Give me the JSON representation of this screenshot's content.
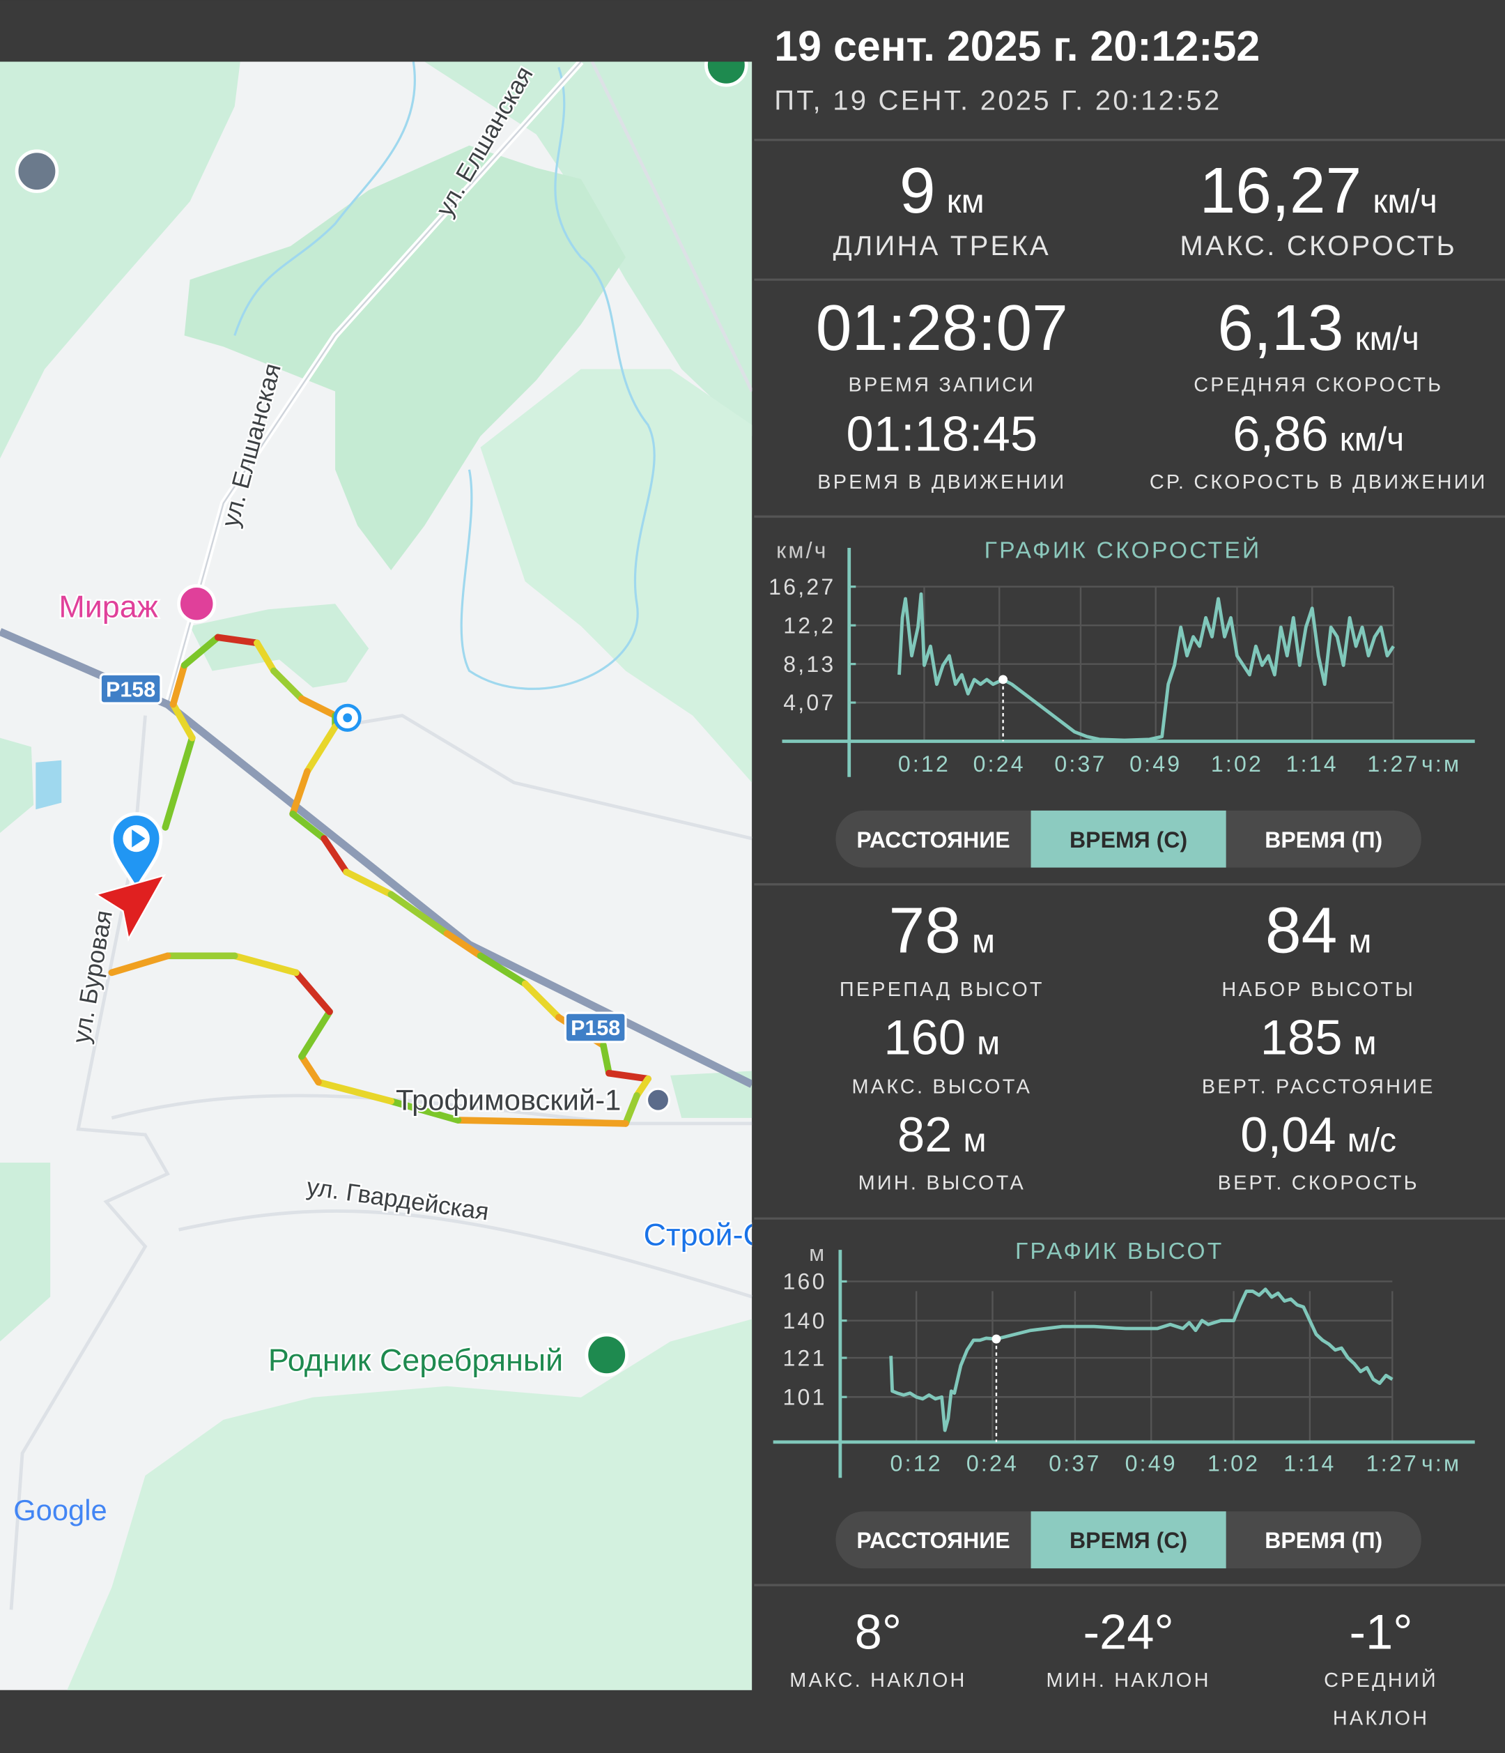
{
  "header": {
    "title": "19 сент. 2025 г. 20:12:52",
    "subtitle": "ПТ, 19 СЕНТ. 2025 Г. 20:12:52"
  },
  "map": {
    "labels": [
      "ул. Елшанская",
      "ул. Елшанская",
      "Мираж",
      "ул. Буровая",
      "Трофимовский-1",
      "ул. Гвардейская",
      "Строй-С",
      "Родник Серебряный"
    ],
    "road_numbers": [
      "Р158",
      "Р158"
    ],
    "logo": "Google"
  },
  "stats": [
    {
      "value": "9",
      "unit": "км",
      "label": "ДЛИНА ТРЕКА"
    },
    {
      "value": "16,27",
      "unit": "км/ч",
      "label": "МАКС. СКОРОСТЬ"
    },
    {
      "value": "01:28:07",
      "label": "ВРЕМЯ ЗАПИСИ"
    },
    {
      "value": "6,13",
      "unit": "км/ч",
      "label": "СРЕДНЯЯ СКОРОСТЬ"
    },
    {
      "value": "01:18:45",
      "label": "ВРЕМЯ В ДВИЖЕНИИ"
    },
    {
      "value": "6,86",
      "unit": "км/ч",
      "label": "СР. СКОРОСТЬ В ДВИЖЕНИИ"
    }
  ],
  "elevation_stats": [
    {
      "value": "78",
      "unit": "м",
      "label": "ПЕРЕПАД ВЫСОТ"
    },
    {
      "value": "84",
      "unit": "м",
      "label": "НАБОР ВЫСОТЫ"
    },
    {
      "value": "160",
      "unit": "м",
      "label": "МАКС. ВЫСОТА"
    },
    {
      "value": "185",
      "unit": "м",
      "label": "ВЕРТ. РАССТОЯНИЕ"
    },
    {
      "value": "82",
      "unit": "м",
      "label": "МИН. ВЫСОТА"
    },
    {
      "value": "0,04",
      "unit": "м/с",
      "label": "ВЕРТ. СКОРОСТЬ"
    }
  ],
  "tilt_stats": [
    {
      "value": "8°",
      "label": [
        "МАКС. НАКЛОН"
      ]
    },
    {
      "value": "-24°",
      "label": [
        "МИН. НАКЛОН"
      ]
    },
    {
      "value": "-1°",
      "label": [
        "СРЕДНИЙ",
        "НАКЛОН"
      ]
    }
  ],
  "toggles": [
    {
      "options": [
        "РАССТОЯНИЕ",
        "ВРЕМЯ (С)",
        "ВРЕМЯ (П)"
      ],
      "selected": 1
    },
    {
      "options": [
        "РАССТОЯНИЕ",
        "ВРЕМЯ (С)",
        "ВРЕМЯ (П)"
      ],
      "selected": 1
    }
  ],
  "chart_data": [
    {
      "type": "line",
      "title": "ГРАФИК СКОРОСТЕЙ",
      "y_label": "км/ч",
      "x_label": "ч:м",
      "x": [
        8,
        8.5,
        9,
        10,
        11,
        11.5,
        12,
        13,
        14,
        15,
        16,
        17,
        18,
        19,
        20,
        21,
        22,
        23,
        24.6,
        26,
        28,
        30,
        32,
        34,
        36,
        38,
        40,
        44,
        48,
        50,
        51,
        52,
        53,
        54,
        55,
        56,
        57,
        58,
        59,
        60,
        61,
        62,
        63,
        64,
        65,
        66,
        67,
        68,
        69,
        70,
        71,
        72,
        73,
        74,
        75,
        76,
        77,
        78,
        79,
        80,
        81,
        82,
        83,
        84,
        85,
        86,
        87
      ],
      "series": [
        {
          "name": "Скорость",
          "color": "#80c8bb",
          "values": [
            7,
            13,
            15,
            9,
            12,
            15.5,
            8,
            10,
            6,
            8,
            9,
            6,
            7,
            5,
            6.5,
            6,
            6.5,
            6,
            6.5,
            6,
            5,
            4,
            3,
            2,
            1,
            0.5,
            0.2,
            0.1,
            0.2,
            0.5,
            6,
            8,
            12,
            9,
            11,
            10,
            13,
            11,
            15,
            11,
            13,
            9,
            8,
            7,
            10,
            8,
            9,
            7,
            12,
            9,
            13,
            8,
            12,
            14,
            9,
            6,
            12,
            11,
            8,
            13,
            10,
            12,
            9,
            11,
            12,
            9,
            10
          ]
        }
      ],
      "xlim": [
        0,
        100
      ],
      "ylim": [
        0,
        20
      ],
      "xticks": [
        {
          "value": 12,
          "label": "0:12"
        },
        {
          "value": 24,
          "label": "0:24"
        },
        {
          "value": 37,
          "label": "0:37"
        },
        {
          "value": 49,
          "label": "0:49"
        },
        {
          "value": 62,
          "label": "1:02"
        },
        {
          "value": 74,
          "label": "1:14"
        },
        {
          "value": 87,
          "label": "1:27"
        }
      ],
      "yticks": [
        {
          "value": 4.07,
          "label": "4,07"
        },
        {
          "value": 8.13,
          "label": "8,13"
        },
        {
          "value": 12.2,
          "label": "12,2"
        },
        {
          "value": 16.27,
          "label": "16,27"
        }
      ],
      "grid": true,
      "highlight_x": 24.6
    },
    {
      "type": "line",
      "title": "ГРАФИК ВЫСОТ",
      "y_label": "м",
      "x_label": "ч:м",
      "x": [
        8,
        8.2,
        9,
        10,
        11,
        12,
        13,
        14,
        15,
        16,
        16.5,
        17,
        17.5,
        18,
        19,
        20,
        21,
        22,
        23,
        24.6,
        30,
        35,
        40,
        45,
        50,
        52,
        54,
        55,
        56,
        57,
        58,
        60,
        62,
        63,
        64,
        65,
        66,
        67,
        68,
        69,
        70,
        71,
        72,
        73,
        74,
        75,
        76,
        77,
        78,
        79,
        80,
        81,
        82,
        83,
        84,
        85,
        86,
        87
      ],
      "series": [
        {
          "name": "Высота",
          "color": "#80c8bb",
          "values": [
            122,
            104,
            103,
            102,
            103,
            101,
            100,
            102,
            100,
            101,
            84,
            90,
            104,
            103,
            117,
            125,
            130,
            130,
            131,
            130.6,
            135,
            137,
            137,
            136,
            136,
            138,
            136,
            139,
            135,
            140,
            138,
            140,
            140,
            148,
            155,
            155,
            153,
            156,
            152,
            154,
            150,
            151,
            148,
            147,
            140,
            133,
            130,
            128,
            125,
            126,
            121,
            118,
            114,
            116,
            110,
            108,
            112,
            110
          ]
        }
      ],
      "xlim": [
        0,
        100
      ],
      "ylim": [
        78,
        175
      ],
      "xticks": [
        {
          "value": 12,
          "label": "0:12"
        },
        {
          "value": 24,
          "label": "0:24"
        },
        {
          "value": 37,
          "label": "0:37"
        },
        {
          "value": 49,
          "label": "0:49"
        },
        {
          "value": 62,
          "label": "1:02"
        },
        {
          "value": 74,
          "label": "1:14"
        },
        {
          "value": 87,
          "label": "1:27"
        }
      ],
      "yticks": [
        101,
        121,
        140,
        160
      ],
      "grid": true,
      "highlight_x": 24.6
    }
  ]
}
